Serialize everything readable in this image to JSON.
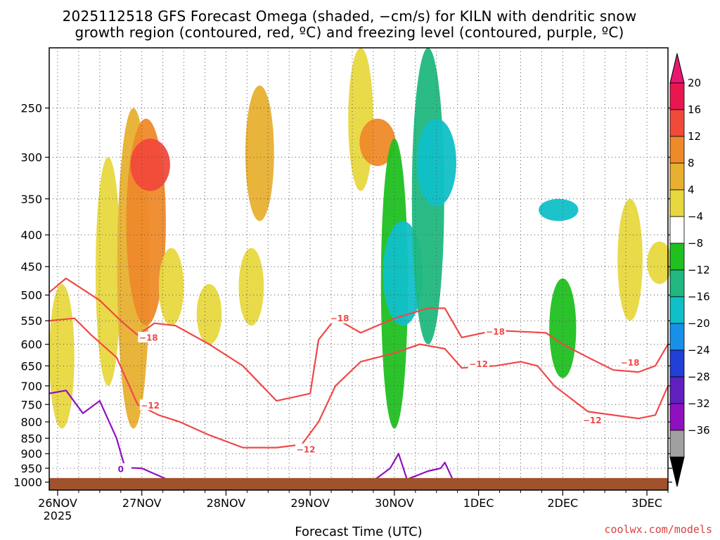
{
  "chart_data": {
    "type": "heatmap",
    "title_line1": "2025112518 GFS Forecast Omega (shaded, −cm/s) for KILN with dendritic snow",
    "title_line2": "growth region (contoured, red, ºC) and freezing level (contoured, purple, ºC)",
    "xlabel": "Forecast Time (UTC)",
    "x_ticks": [
      {
        "label": "26NOV",
        "day": 1
      },
      {
        "label": "27NOV",
        "day": 2
      },
      {
        "label": "28NOV",
        "day": 3
      },
      {
        "label": "29NOV",
        "day": 4
      },
      {
        "label": "30NOV",
        "day": 5
      },
      {
        "label": "1DEC",
        "day": 6
      },
      {
        "label": "2DEC",
        "day": 7
      },
      {
        "label": "3DEC",
        "day": 8
      }
    ],
    "x_year_label": "2025",
    "x_range_days": [
      0.9,
      8.25
    ],
    "y_ticks": [
      250,
      300,
      350,
      400,
      450,
      500,
      550,
      600,
      650,
      700,
      750,
      800,
      850,
      900,
      950,
      1000
    ],
    "y_range_hpa": [
      200,
      1030
    ],
    "colorbar": {
      "labels": [
        "20",
        "16",
        "12",
        "8",
        "4",
        "−4",
        "−8",
        "−12",
        "−16",
        "−20",
        "−24",
        "−28",
        "−32",
        "−36"
      ],
      "colors": [
        "#e8174f",
        "#f04a3a",
        "#ee8a2a",
        "#e8b030",
        "#e8d840",
        "#ffffff",
        "#20c020",
        "#20b880",
        "#10c0c8",
        "#1890e8",
        "#2040d8",
        "#6020c0",
        "#9010c0",
        "#a0a0a0"
      ],
      "top_arrow_color": "#e8176f",
      "bottom_arrow_color": "#000000"
    },
    "omega_regions": [
      {
        "day": 1.05,
        "p0": 480,
        "p1": 820,
        "val": 6
      },
      {
        "day": 1.6,
        "p0": 300,
        "p1": 700,
        "val": 6
      },
      {
        "day": 1.9,
        "p0": 250,
        "p1": 820,
        "val": 10
      },
      {
        "day": 2.05,
        "p0": 260,
        "p1": 560,
        "val": 14
      },
      {
        "day": 2.1,
        "p0": 280,
        "p1": 340,
        "val": 18
      },
      {
        "day": 2.35,
        "p0": 420,
        "p1": 560,
        "val": 6
      },
      {
        "day": 2.8,
        "p0": 480,
        "p1": 600,
        "val": 6
      },
      {
        "day": 3.3,
        "p0": 420,
        "p1": 560,
        "val": 6
      },
      {
        "day": 3.4,
        "p0": 230,
        "p1": 380,
        "val": 8
      },
      {
        "day": 4.6,
        "p0": 160,
        "p1": 340,
        "val": 6
      },
      {
        "day": 4.8,
        "p0": 260,
        "p1": 310,
        "val": 12
      },
      {
        "day": 5.0,
        "p0": 280,
        "p1": 820,
        "val": -7
      },
      {
        "day": 5.1,
        "p0": 380,
        "p1": 560,
        "val": -14
      },
      {
        "day": 5.4,
        "p0": 200,
        "p1": 600,
        "val": -10
      },
      {
        "day": 5.5,
        "p0": 260,
        "p1": 360,
        "val": -14
      },
      {
        "day": 6.95,
        "p0": 350,
        "p1": 380,
        "val": -14
      },
      {
        "day": 7.0,
        "p0": 470,
        "p1": 680,
        "val": -7
      },
      {
        "day": 7.8,
        "p0": 350,
        "p1": 550,
        "val": 6
      },
      {
        "day": 8.15,
        "p0": 410,
        "p1": 480,
        "val": 6
      }
    ],
    "dgz_contours": [
      {
        "value": -18,
        "label": "−18",
        "label_day": 2.08,
        "label_p": 585,
        "points": [
          [
            0.9,
            495
          ],
          [
            1.1,
            470
          ],
          [
            1.5,
            510
          ],
          [
            1.75,
            550
          ],
          [
            1.95,
            580
          ],
          [
            2.15,
            555
          ],
          [
            2.4,
            560
          ],
          [
            2.8,
            600
          ],
          [
            3.2,
            650
          ],
          [
            3.6,
            740
          ],
          [
            3.8,
            730
          ],
          [
            4.0,
            720
          ],
          [
            4.1,
            590
          ],
          [
            4.3,
            545
          ],
          [
            4.6,
            575
          ],
          [
            5.0,
            545
          ],
          [
            5.2,
            535
          ],
          [
            5.4,
            525
          ],
          [
            5.6,
            525
          ],
          [
            5.8,
            585
          ],
          [
            6.2,
            570
          ],
          [
            6.8,
            575
          ],
          [
            7.0,
            600
          ],
          [
            7.3,
            630
          ],
          [
            7.6,
            660
          ],
          [
            7.9,
            665
          ],
          [
            8.1,
            650
          ],
          [
            8.25,
            600
          ]
        ]
      },
      {
        "value": -18,
        "label": "−18",
        "label_day": 4.35,
        "label_p": 545,
        "points": []
      },
      {
        "value": -18,
        "label": "−18",
        "label_day": 6.2,
        "label_p": 572,
        "points": []
      },
      {
        "value": -18,
        "label": "−18",
        "label_day": 7.8,
        "label_p": 642,
        "points": []
      },
      {
        "value": -12,
        "label": "−12",
        "label_day": 2.1,
        "label_p": 752,
        "points": [
          [
            0.9,
            550
          ],
          [
            1.2,
            545
          ],
          [
            1.4,
            580
          ],
          [
            1.7,
            630
          ],
          [
            1.95,
            750
          ],
          [
            2.2,
            780
          ],
          [
            2.45,
            800
          ],
          [
            2.8,
            840
          ],
          [
            3.2,
            880
          ],
          [
            3.6,
            880
          ],
          [
            3.9,
            870
          ],
          [
            4.1,
            800
          ],
          [
            4.3,
            700
          ],
          [
            4.6,
            640
          ],
          [
            5.0,
            620
          ],
          [
            5.3,
            600
          ],
          [
            5.6,
            610
          ],
          [
            5.8,
            655
          ],
          [
            6.2,
            650
          ],
          [
            6.5,
            640
          ],
          [
            6.7,
            650
          ],
          [
            6.9,
            700
          ],
          [
            7.3,
            770
          ],
          [
            7.9,
            790
          ],
          [
            8.1,
            780
          ],
          [
            8.25,
            700
          ]
        ]
      },
      {
        "value": -12,
        "label": "−12",
        "label_day": 3.95,
        "label_p": 885,
        "points": []
      },
      {
        "value": -12,
        "label": "−12",
        "label_day": 6.0,
        "label_p": 645,
        "points": []
      },
      {
        "value": -12,
        "label": "−12",
        "label_day": 7.35,
        "label_p": 795,
        "points": []
      }
    ],
    "freezing_level": {
      "value": 0,
      "label": "0",
      "label_day": 1.75,
      "label_p": 952,
      "points": [
        [
          0.9,
          720
        ],
        [
          1.1,
          712
        ],
        [
          1.3,
          775
        ],
        [
          1.5,
          740
        ],
        [
          1.7,
          850
        ],
        [
          1.8,
          948
        ],
        [
          2.0,
          950
        ],
        [
          2.3,
          990
        ],
        [
          2.7,
          1000
        ],
        [
          2.85,
          990
        ],
        [
          3.0,
          990
        ]
      ]
    },
    "freezing_level_segments": [
      [
        [
          4.75,
          995
        ],
        [
          4.95,
          950
        ],
        [
          5.05,
          900
        ],
        [
          5.15,
          990
        ],
        [
          5.4,
          960
        ],
        [
          5.55,
          950
        ],
        [
          5.6,
          930
        ],
        [
          5.7,
          995
        ]
      ]
    ],
    "ground_color": "#a0522d"
  },
  "credit": "coolwx.com/models"
}
